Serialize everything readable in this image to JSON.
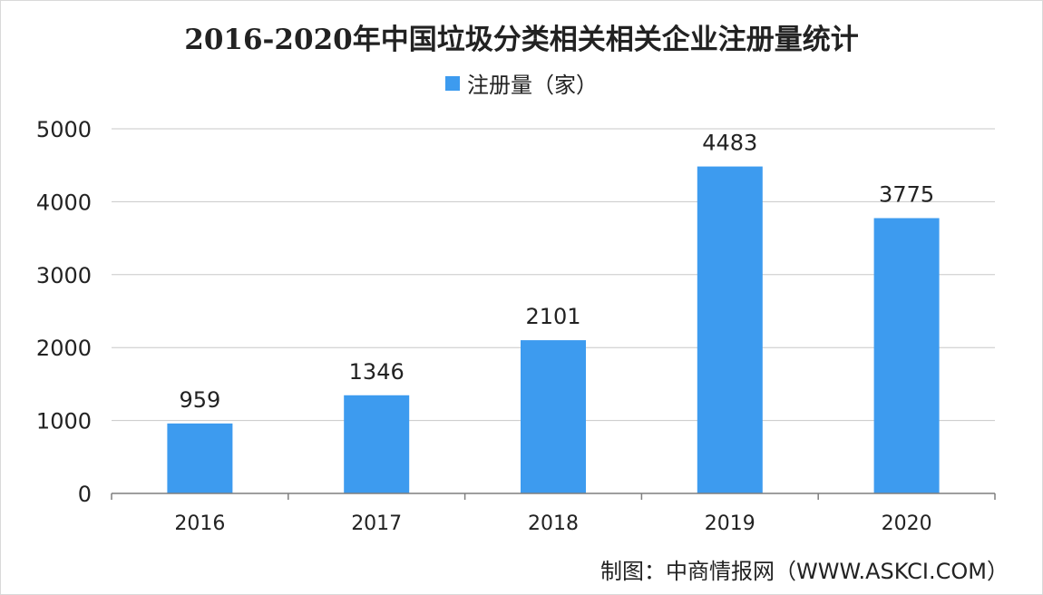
{
  "chart_data": {
    "type": "bar",
    "title": "2016-2020年中国垃圾分类相关相关企业注册量统计",
    "categories": [
      "2016",
      "2017",
      "2018",
      "2019",
      "2020"
    ],
    "series": [
      {
        "name": "注册量（家）",
        "values": [
          959,
          1346,
          2101,
          4483,
          3775
        ]
      }
    ],
    "xlabel": "",
    "ylabel": "",
    "ylim": [
      0,
      5000
    ],
    "yticks": [
      0,
      1000,
      2000,
      3000,
      4000,
      5000
    ],
    "grid": true,
    "legend_position": "top-center",
    "data_labels": true,
    "bar_color": "#3d9bef"
  },
  "source_note": "制图：中商情报网（WWW.ASKCI.COM）",
  "colors": {
    "bar": "#3d9bef",
    "grid": "#c8c8c8",
    "axis": "#7f7f7f",
    "text": "#222222"
  }
}
